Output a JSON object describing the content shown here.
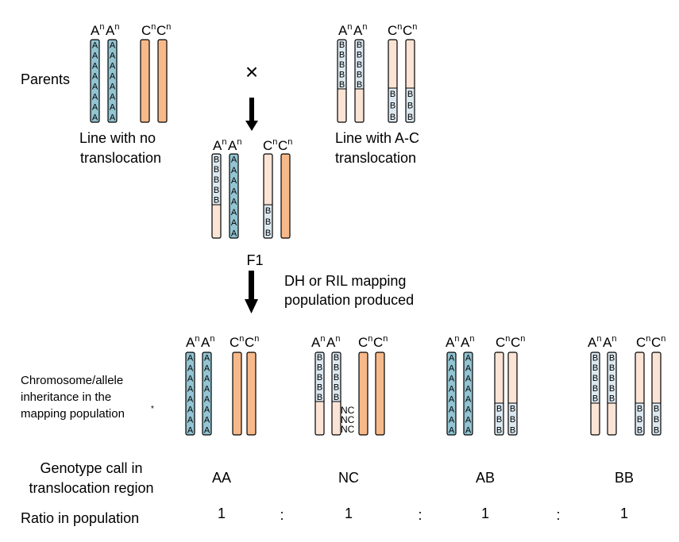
{
  "colors": {
    "a_segment": "#93c4d2",
    "b_segment": "#dce9f1",
    "c_full": "#f8b98a",
    "c_light": "#fbe4d5",
    "outline": "#000000"
  },
  "labels": {
    "parents": "Parents",
    "cross_symbol": "×",
    "line_no_translocation": [
      "Line with no",
      "translocation"
    ],
    "line_with_translocation": [
      "Line with A-C",
      "translocation"
    ],
    "f1": "F1",
    "mapping_note": [
      "DH or RIL mapping",
      "population produced"
    ],
    "inheritance": [
      "Chromosome/allele",
      "inheritance in the",
      "mapping population"
    ],
    "inheritance_mark": "*",
    "genotype_call": [
      "Genotype call in",
      "translocation region"
    ],
    "ratio_label": "Ratio in population",
    "ratio_sep": ":"
  },
  "chromosome_labels": {
    "a_base": "A",
    "c_base": "C",
    "superscript": "n"
  },
  "alleles": {
    "a": "A",
    "b": "B",
    "nc": "NC"
  },
  "genotypes": [
    {
      "call": "AA",
      "ratio": "1"
    },
    {
      "call": "NC",
      "ratio": "1"
    },
    {
      "call": "AB",
      "ratio": "1"
    },
    {
      "call": "BB",
      "ratio": "1"
    }
  ]
}
